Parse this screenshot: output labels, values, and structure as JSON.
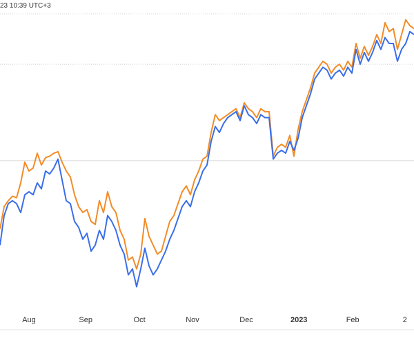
{
  "header": {
    "timestamp": "23 10:39 UTC+3"
  },
  "chart_data": {
    "type": "line",
    "x_ticks": [
      {
        "label": "Aug",
        "x": 0.07,
        "bold": false
      },
      {
        "label": "Sep",
        "x": 0.207,
        "bold": false
      },
      {
        "label": "Oct",
        "x": 0.337,
        "bold": false
      },
      {
        "label": "Nov",
        "x": 0.465,
        "bold": false
      },
      {
        "label": "Dec",
        "x": 0.595,
        "bold": false
      },
      {
        "label": "2023",
        "x": 0.722,
        "bold": true
      },
      {
        "label": "Feb",
        "x": 0.852,
        "bold": false
      },
      {
        "label": "2",
        "x": 0.978,
        "bold": false
      }
    ],
    "grid": [
      {
        "y": 0.83,
        "style": "dotted"
      },
      {
        "y": 0.505,
        "style": "solid"
      }
    ],
    "ylim": [
      0,
      1
    ],
    "series": [
      {
        "color": "#f28c28",
        "points": [
          [
            0.0,
            0.275
          ],
          [
            0.01,
            0.35
          ],
          [
            0.02,
            0.37
          ],
          [
            0.03,
            0.385
          ],
          [
            0.04,
            0.38
          ],
          [
            0.05,
            0.43
          ],
          [
            0.06,
            0.5
          ],
          [
            0.07,
            0.47
          ],
          [
            0.08,
            0.48
          ],
          [
            0.09,
            0.53
          ],
          [
            0.1,
            0.49
          ],
          [
            0.11,
            0.515
          ],
          [
            0.12,
            0.52
          ],
          [
            0.13,
            0.53
          ],
          [
            0.14,
            0.535
          ],
          [
            0.15,
            0.5
          ],
          [
            0.16,
            0.47
          ],
          [
            0.17,
            0.45
          ],
          [
            0.18,
            0.39
          ],
          [
            0.19,
            0.35
          ],
          [
            0.2,
            0.33
          ],
          [
            0.21,
            0.34
          ],
          [
            0.22,
            0.3
          ],
          [
            0.23,
            0.29
          ],
          [
            0.24,
            0.37
          ],
          [
            0.25,
            0.33
          ],
          [
            0.26,
            0.4
          ],
          [
            0.27,
            0.35
          ],
          [
            0.28,
            0.33
          ],
          [
            0.29,
            0.27
          ],
          [
            0.3,
            0.24
          ],
          [
            0.31,
            0.17
          ],
          [
            0.32,
            0.18
          ],
          [
            0.33,
            0.14
          ],
          [
            0.34,
            0.19
          ],
          [
            0.35,
            0.31
          ],
          [
            0.36,
            0.25
          ],
          [
            0.37,
            0.22
          ],
          [
            0.38,
            0.19
          ],
          [
            0.39,
            0.2
          ],
          [
            0.4,
            0.25
          ],
          [
            0.41,
            0.3
          ],
          [
            0.42,
            0.32
          ],
          [
            0.43,
            0.36
          ],
          [
            0.44,
            0.4
          ],
          [
            0.45,
            0.42
          ],
          [
            0.46,
            0.39
          ],
          [
            0.47,
            0.44
          ],
          [
            0.48,
            0.47
          ],
          [
            0.49,
            0.51
          ],
          [
            0.5,
            0.52
          ],
          [
            0.51,
            0.6
          ],
          [
            0.52,
            0.66
          ],
          [
            0.53,
            0.64
          ],
          [
            0.54,
            0.65
          ],
          [
            0.55,
            0.66
          ],
          [
            0.56,
            0.67
          ],
          [
            0.57,
            0.68
          ],
          [
            0.58,
            0.65
          ],
          [
            0.59,
            0.7
          ],
          [
            0.6,
            0.68
          ],
          [
            0.61,
            0.67
          ],
          [
            0.62,
            0.65
          ],
          [
            0.63,
            0.68
          ],
          [
            0.64,
            0.67
          ],
          [
            0.65,
            0.67
          ],
          [
            0.66,
            0.52
          ],
          [
            0.67,
            0.55
          ],
          [
            0.68,
            0.56
          ],
          [
            0.69,
            0.55
          ],
          [
            0.7,
            0.59
          ],
          [
            0.71,
            0.52
          ],
          [
            0.72,
            0.61
          ],
          [
            0.73,
            0.67
          ],
          [
            0.74,
            0.71
          ],
          [
            0.75,
            0.75
          ],
          [
            0.76,
            0.8
          ],
          [
            0.77,
            0.82
          ],
          [
            0.78,
            0.84
          ],
          [
            0.79,
            0.83
          ],
          [
            0.8,
            0.8
          ],
          [
            0.81,
            0.82
          ],
          [
            0.82,
            0.83
          ],
          [
            0.83,
            0.81
          ],
          [
            0.84,
            0.84
          ],
          [
            0.85,
            0.82
          ],
          [
            0.86,
            0.9
          ],
          [
            0.87,
            0.85
          ],
          [
            0.88,
            0.89
          ],
          [
            0.89,
            0.86
          ],
          [
            0.9,
            0.89
          ],
          [
            0.91,
            0.93
          ],
          [
            0.92,
            0.9
          ],
          [
            0.93,
            0.97
          ],
          [
            0.94,
            0.94
          ],
          [
            0.95,
            0.95
          ],
          [
            0.96,
            0.88
          ],
          [
            0.97,
            0.93
          ],
          [
            0.98,
            0.98
          ],
          [
            0.99,
            0.96
          ],
          [
            1.0,
            0.95
          ]
        ]
      },
      {
        "color": "#3a6ee8",
        "points": [
          [
            0.0,
            0.22
          ],
          [
            0.01,
            0.32
          ],
          [
            0.02,
            0.36
          ],
          [
            0.03,
            0.37
          ],
          [
            0.04,
            0.36
          ],
          [
            0.05,
            0.33
          ],
          [
            0.06,
            0.39
          ],
          [
            0.07,
            0.4
          ],
          [
            0.08,
            0.39
          ],
          [
            0.09,
            0.43
          ],
          [
            0.1,
            0.41
          ],
          [
            0.11,
            0.47
          ],
          [
            0.12,
            0.46
          ],
          [
            0.13,
            0.48
          ],
          [
            0.14,
            0.51
          ],
          [
            0.15,
            0.44
          ],
          [
            0.16,
            0.37
          ],
          [
            0.17,
            0.36
          ],
          [
            0.18,
            0.3
          ],
          [
            0.19,
            0.28
          ],
          [
            0.2,
            0.24
          ],
          [
            0.21,
            0.26
          ],
          [
            0.22,
            0.2
          ],
          [
            0.23,
            0.22
          ],
          [
            0.24,
            0.27
          ],
          [
            0.25,
            0.24
          ],
          [
            0.26,
            0.32
          ],
          [
            0.27,
            0.3
          ],
          [
            0.28,
            0.27
          ],
          [
            0.29,
            0.22
          ],
          [
            0.3,
            0.19
          ],
          [
            0.31,
            0.12
          ],
          [
            0.32,
            0.14
          ],
          [
            0.33,
            0.08
          ],
          [
            0.34,
            0.14
          ],
          [
            0.35,
            0.21
          ],
          [
            0.36,
            0.15
          ],
          [
            0.37,
            0.12
          ],
          [
            0.38,
            0.14
          ],
          [
            0.39,
            0.17
          ],
          [
            0.4,
            0.2
          ],
          [
            0.41,
            0.24
          ],
          [
            0.42,
            0.27
          ],
          [
            0.43,
            0.31
          ],
          [
            0.44,
            0.35
          ],
          [
            0.45,
            0.37
          ],
          [
            0.46,
            0.35
          ],
          [
            0.47,
            0.4
          ],
          [
            0.48,
            0.43
          ],
          [
            0.49,
            0.47
          ],
          [
            0.5,
            0.49
          ],
          [
            0.51,
            0.57
          ],
          [
            0.52,
            0.62
          ],
          [
            0.53,
            0.6
          ],
          [
            0.54,
            0.63
          ],
          [
            0.55,
            0.65
          ],
          [
            0.56,
            0.66
          ],
          [
            0.57,
            0.67
          ],
          [
            0.58,
            0.64
          ],
          [
            0.59,
            0.69
          ],
          [
            0.6,
            0.66
          ],
          [
            0.61,
            0.65
          ],
          [
            0.62,
            0.63
          ],
          [
            0.63,
            0.66
          ],
          [
            0.64,
            0.65
          ],
          [
            0.65,
            0.65
          ],
          [
            0.66,
            0.51
          ],
          [
            0.67,
            0.53
          ],
          [
            0.68,
            0.54
          ],
          [
            0.69,
            0.53
          ],
          [
            0.7,
            0.57
          ],
          [
            0.71,
            0.54
          ],
          [
            0.72,
            0.58
          ],
          [
            0.73,
            0.65
          ],
          [
            0.74,
            0.69
          ],
          [
            0.75,
            0.73
          ],
          [
            0.76,
            0.78
          ],
          [
            0.77,
            0.8
          ],
          [
            0.78,
            0.82
          ],
          [
            0.79,
            0.81
          ],
          [
            0.8,
            0.78
          ],
          [
            0.81,
            0.8
          ],
          [
            0.82,
            0.81
          ],
          [
            0.83,
            0.79
          ],
          [
            0.84,
            0.82
          ],
          [
            0.85,
            0.8
          ],
          [
            0.86,
            0.88
          ],
          [
            0.87,
            0.83
          ],
          [
            0.88,
            0.87
          ],
          [
            0.89,
            0.84
          ],
          [
            0.9,
            0.87
          ],
          [
            0.91,
            0.91
          ],
          [
            0.92,
            0.88
          ],
          [
            0.93,
            0.92
          ],
          [
            0.94,
            0.9
          ],
          [
            0.95,
            0.9
          ],
          [
            0.96,
            0.84
          ],
          [
            0.97,
            0.88
          ],
          [
            0.98,
            0.9
          ],
          [
            0.99,
            0.94
          ],
          [
            1.0,
            0.93
          ]
        ]
      }
    ]
  }
}
